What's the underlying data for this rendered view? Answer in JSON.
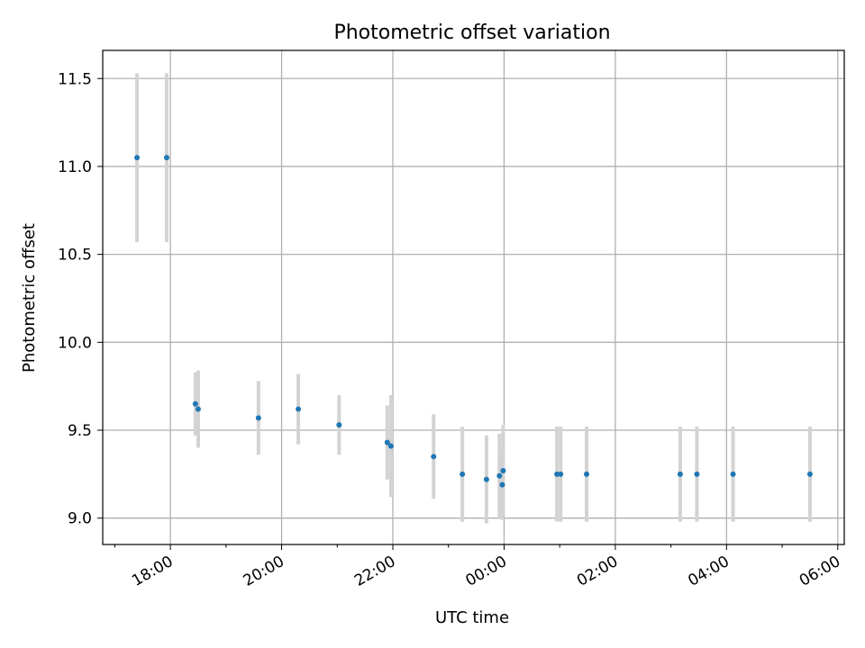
{
  "chart_data": {
    "type": "scatter",
    "title": "Photometric offset variation",
    "xlabel": "UTC time",
    "ylabel": "Photometric offset",
    "x_ticks": [
      "17:00",
      "18:00",
      "19:00",
      "20:00",
      "21:00",
      "22:00",
      "23:00",
      "00:00",
      "01:00",
      "02:00",
      "03:00",
      "04:00",
      "05:00",
      "06:00"
    ],
    "x_tick_labels": [
      "18:00",
      "20:00",
      "22:00",
      "00:00",
      "02:00",
      "04:00",
      "06:00"
    ],
    "x_range": [
      "16:47",
      "06:07"
    ],
    "y_ticks": [
      9.0,
      9.5,
      10.0,
      10.5,
      11.0,
      11.5
    ],
    "y_tick_labels": [
      "9.0",
      "9.5",
      "10.0",
      "10.5",
      "11.0",
      "11.5"
    ],
    "ylim": [
      8.85,
      11.66
    ],
    "grid": true,
    "marker_color": "#1f77b4",
    "errorbar_color": "#d3d3d3",
    "points": [
      {
        "x": "17:24",
        "y": 11.05,
        "err": 0.48
      },
      {
        "x": "17:56",
        "y": 11.05,
        "err": 0.48
      },
      {
        "x": "18:27",
        "y": 9.65,
        "err": 0.18
      },
      {
        "x": "18:30",
        "y": 9.62,
        "err": 0.22
      },
      {
        "x": "19:35",
        "y": 9.57,
        "err": 0.21
      },
      {
        "x": "20:18",
        "y": 9.62,
        "err": 0.2
      },
      {
        "x": "21:02",
        "y": 9.53,
        "err": 0.17
      },
      {
        "x": "21:54",
        "y": 9.43,
        "err": 0.21
      },
      {
        "x": "21:58",
        "y": 9.41,
        "err": 0.29
      },
      {
        "x": "22:44",
        "y": 9.35,
        "err": 0.24
      },
      {
        "x": "23:15",
        "y": 9.25,
        "err": 0.27
      },
      {
        "x": "23:41",
        "y": 9.22,
        "err": 0.25
      },
      {
        "x": "23:55",
        "y": 9.24,
        "err": 0.24
      },
      {
        "x": "23:58",
        "y": 9.19,
        "err": 0.2
      },
      {
        "x": "23:59",
        "y": 9.27,
        "err": 0.26
      },
      {
        "x": "00:57",
        "y": 9.25,
        "err": 0.27
      },
      {
        "x": "01:01",
        "y": 9.25,
        "err": 0.27
      },
      {
        "x": "01:29",
        "y": 9.25,
        "err": 0.27
      },
      {
        "x": "03:10",
        "y": 9.25,
        "err": 0.27
      },
      {
        "x": "03:28",
        "y": 9.25,
        "err": 0.27
      },
      {
        "x": "04:07",
        "y": 9.25,
        "err": 0.27
      },
      {
        "x": "05:30",
        "y": 9.25,
        "err": 0.27
      }
    ]
  }
}
